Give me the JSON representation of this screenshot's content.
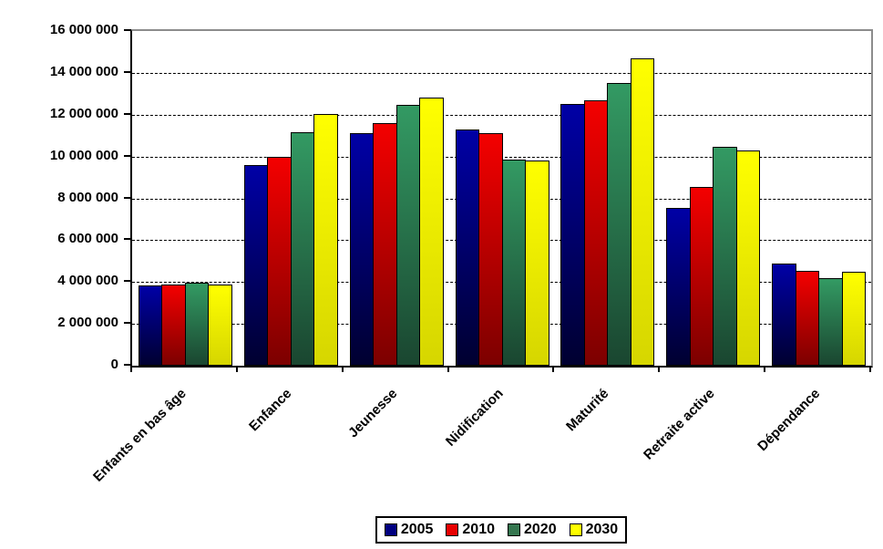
{
  "chart_data": {
    "type": "bar",
    "title": "",
    "xlabel": "",
    "ylabel": "",
    "categories": [
      "Enfants en bas âge",
      "Enfance",
      "Jeunesse",
      "Nidification",
      "Maturité",
      "Retraite active",
      "Dépendance"
    ],
    "series": [
      {
        "name": "2005",
        "legend_color": "#000080",
        "color_top": "#0000A6",
        "color_bottom": "#000030",
        "values": [
          3850000,
          9600000,
          11100000,
          11300000,
          12500000,
          7550000,
          4900000
        ]
      },
      {
        "name": "2010",
        "legend_color": "#E80000",
        "color_top": "#F40000",
        "color_bottom": "#7C0000",
        "values": [
          3900000,
          10000000,
          11600000,
          11100000,
          12700000,
          8550000,
          4550000
        ]
      },
      {
        "name": "2020",
        "legend_color": "#35764F",
        "color_top": "#339A63",
        "color_bottom": "#1A4630",
        "values": [
          3950000,
          11150000,
          12450000,
          9850000,
          13500000,
          10450000,
          4200000
        ]
      },
      {
        "name": "2030",
        "legend_color": "#FFFF00",
        "color_top": "#FFFF00",
        "color_bottom": "#D6D600",
        "values": [
          3900000,
          12050000,
          12800000,
          9800000,
          14700000,
          10300000,
          4500000
        ]
      }
    ],
    "ylim": [
      0,
      16000000
    ],
    "y_step": 2000000,
    "y_ticks": [
      {
        "value": 0,
        "label": "0"
      },
      {
        "value": 2000000,
        "label": "2 000 000"
      },
      {
        "value": 4000000,
        "label": "4 000 000"
      },
      {
        "value": 6000000,
        "label": "6 000 000"
      },
      {
        "value": 8000000,
        "label": "8 000 000"
      },
      {
        "value": 10000000,
        "label": "10 000 000"
      },
      {
        "value": 12000000,
        "label": "12 000 000"
      },
      {
        "value": 14000000,
        "label": "14 000 000"
      },
      {
        "value": 16000000,
        "label": "16 000 000"
      }
    ],
    "grid": "horizontal-dashed",
    "legend_position": "bottom"
  },
  "colors": {
    "background": "#FFFFFF",
    "axis": "#000000",
    "plot_border_gray": "#8C8C8C",
    "gridline": "#000000",
    "text": "#000000"
  }
}
